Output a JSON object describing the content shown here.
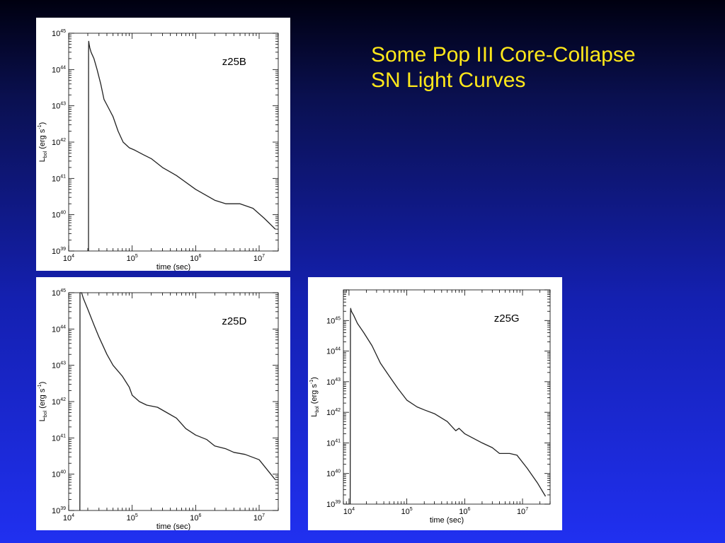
{
  "slide": {
    "title_line1": "Some Pop III Core-Collapse",
    "title_line2": "SN Light Curves",
    "title_color": "#ffe81a"
  },
  "chart_data": [
    {
      "type": "line",
      "label": "z25B",
      "xlabel": "time (sec)",
      "ylabel": "L_bol (erg s^-1)",
      "xscale": "log",
      "yscale": "log",
      "xlim": [
        10000,
        20000000
      ],
      "ylim": [
        1e+39,
        1e+45
      ],
      "xticks": [
        {
          "base": "10",
          "exp": "4"
        },
        {
          "base": "10",
          "exp": "5"
        },
        {
          "base": "10",
          "exp": "6"
        },
        {
          "base": "10",
          "exp": "7"
        }
      ],
      "yticks": [
        {
          "base": "10",
          "exp": "39"
        },
        {
          "base": "10",
          "exp": "40"
        },
        {
          "base": "10",
          "exp": "41"
        },
        {
          "base": "10",
          "exp": "42"
        },
        {
          "base": "10",
          "exp": "43"
        },
        {
          "base": "10",
          "exp": "44"
        },
        {
          "base": "10",
          "exp": "45"
        }
      ],
      "series": [
        {
          "x": [
            20500,
            20600,
            20700,
            21000,
            21500,
            22500,
            25000,
            28000,
            32000,
            36000,
            42000,
            50000,
            60000,
            72000,
            90000,
            110000,
            150000,
            200000,
            300000,
            400000,
            500000,
            1000000,
            2000000,
            3000000,
            5000000,
            8000000,
            12000000,
            18000000
          ],
          "y": [
            1e+39,
            3e+44,
            6e+44,
            5e+44,
            4e+44,
            3e+44,
            2e+44,
            1e+44,
            4e+43,
            1.5e+43,
            9e+42,
            5e+42,
            2e+42,
            1e+42,
            7e+41,
            6e+41,
            4.5e+41,
            3.5e+41,
            2e+41,
            1.5e+41,
            1.2e+41,
            5e+40,
            2.5e+40,
            2e+40,
            2e+40,
            1.5e+40,
            8e+39,
            4e+39
          ]
        }
      ]
    },
    {
      "type": "line",
      "label": "z25D",
      "xlabel": "time (sec)",
      "ylabel": "L_bol (erg s^-1)",
      "xscale": "log",
      "yscale": "log",
      "xlim": [
        10000,
        20000000
      ],
      "ylim": [
        1e+39,
        1e+45
      ],
      "xticks": [
        {
          "base": "10",
          "exp": "4"
        },
        {
          "base": "10",
          "exp": "5"
        },
        {
          "base": "10",
          "exp": "6"
        },
        {
          "base": "10",
          "exp": "7"
        }
      ],
      "yticks": [
        {
          "base": "10",
          "exp": "39"
        },
        {
          "base": "10",
          "exp": "40"
        },
        {
          "base": "10",
          "exp": "41"
        },
        {
          "base": "10",
          "exp": "42"
        },
        {
          "base": "10",
          "exp": "43"
        },
        {
          "base": "10",
          "exp": "44"
        },
        {
          "base": "10",
          "exp": "45"
        }
      ],
      "series": [
        {
          "x": [
            15000,
            15100,
            15200,
            15500,
            16000,
            17000,
            20000,
            25000,
            30000,
            40000,
            50000,
            70000,
            90000,
            100000,
            130000,
            170000,
            250000,
            350000,
            500000,
            700000,
            1000000,
            1500000,
            2000000,
            3000000,
            4000000,
            6000000,
            10000000,
            18000000
          ],
          "y": [
            1e+39,
            1e+45,
            1.5e+45,
            1.2e+45,
            1e+45,
            7e+44,
            3.5e+44,
            1.3e+44,
            6e+43,
            2e+43,
            1e+43,
            5e+42,
            2.5e+42,
            1.5e+42,
            1e+42,
            8e+41,
            7e+41,
            5e+41,
            3.5e+41,
            1.8e+41,
            1.2e+41,
            9e+40,
            6e+40,
            5e+40,
            4e+40,
            3.5e+40,
            2.5e+40,
            7e+39
          ]
        }
      ]
    },
    {
      "type": "line",
      "label": "z25G",
      "xlabel": "time (sec)",
      "ylabel": "L_bol (erg s^-1)",
      "xscale": "log",
      "yscale": "log",
      "xlim": [
        8000,
        30000000
      ],
      "ylim": [
        1e+39,
        1e+46
      ],
      "xticks": [
        {
          "base": "10",
          "exp": "4"
        },
        {
          "base": "10",
          "exp": "5"
        },
        {
          "base": "10",
          "exp": "6"
        },
        {
          "base": "10",
          "exp": "7"
        }
      ],
      "yticks": [
        {
          "base": "10",
          "exp": "39"
        },
        {
          "base": "10",
          "exp": "40"
        },
        {
          "base": "10",
          "exp": "41"
        },
        {
          "base": "10",
          "exp": "42"
        },
        {
          "base": "10",
          "exp": "43"
        },
        {
          "base": "10",
          "exp": "44"
        },
        {
          "base": "10",
          "exp": "45"
        }
      ],
      "series": [
        {
          "x": [
            10500,
            10600,
            10700,
            11000,
            12000,
            14000,
            18000,
            25000,
            35000,
            50000,
            70000,
            100000,
            150000,
            200000,
            300000,
            500000,
            700000,
            800000,
            1000000,
            2000000,
            3000000,
            4000000,
            6000000,
            8000000,
            12000000,
            18000000,
            25000000
          ],
          "y": [
            1e+39,
            1.5e+45,
            2.5e+45,
            2e+45,
            1.5e+45,
            8e+44,
            4e+44,
            1.5e+44,
            4e+43,
            1.5e+43,
            6e+42,
            2.5e+42,
            1.5e+42,
            1.2e+42,
            9e+41,
            5e+41,
            2.5e+41,
            3e+41,
            2e+41,
            1e+41,
            7e+40,
            4.5e+40,
            4.5e+40,
            4e+40,
            1.5e+40,
            5e+39,
            1.8e+39
          ]
        }
      ]
    }
  ]
}
